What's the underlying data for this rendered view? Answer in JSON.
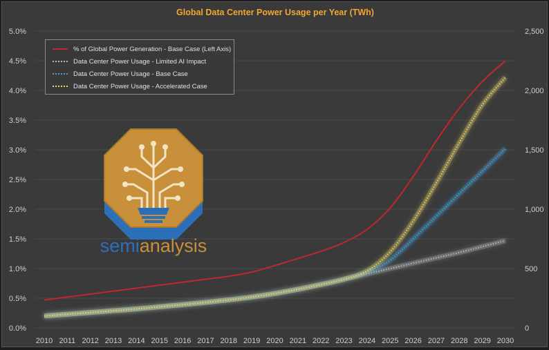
{
  "chart_data": {
    "type": "line",
    "title": "Global Data Center Power Usage per Year (TWh)",
    "x": [
      "2010",
      "2011",
      "2012",
      "2013",
      "2014",
      "2015",
      "2016",
      "2017",
      "2018",
      "2019",
      "2020",
      "2021",
      "2022",
      "2023",
      "2024",
      "2025",
      "2026",
      "2027",
      "2028",
      "2029",
      "2030"
    ],
    "left_axis": {
      "ticks": [
        "0.0%",
        "0.5%",
        "1.0%",
        "1.5%",
        "2.0%",
        "2.5%",
        "3.0%",
        "3.5%",
        "4.0%",
        "4.5%",
        "5.0%"
      ],
      "ylim": [
        0,
        5.0
      ]
    },
    "right_axis": {
      "ticks": [
        "0",
        "500",
        "1,000",
        "1,500",
        "2,000",
        "2,500"
      ],
      "ylim": [
        0,
        2500
      ]
    },
    "series": [
      {
        "name": "% of Global Power Generation - Base Case (Left Axis)",
        "axis": "left",
        "color": "#c0282c",
        "dashed": false,
        "values": [
          0.47,
          0.52,
          0.57,
          0.62,
          0.67,
          0.72,
          0.77,
          0.82,
          0.87,
          0.94,
          1.05,
          1.17,
          1.29,
          1.44,
          1.66,
          2.02,
          2.55,
          3.15,
          3.7,
          4.15,
          4.5
        ]
      },
      {
        "name": "Data Center Power Usage - Limited AI Impact",
        "axis": "right",
        "color": "#b8bcc0",
        "dashed": true,
        "values": [
          100,
          115,
          130,
          145,
          160,
          178,
          196,
          215,
          236,
          260,
          290,
          325,
          365,
          410,
          455,
          500,
          545,
          590,
          635,
          685,
          735
        ]
      },
      {
        "name": "Data Center Power Usage - Base Case",
        "axis": "right",
        "color": "#4a9fd8",
        "dashed": true,
        "values": [
          100,
          115,
          130,
          145,
          160,
          178,
          196,
          215,
          236,
          260,
          290,
          325,
          365,
          410,
          470,
          570,
          750,
          940,
          1130,
          1320,
          1510
        ]
      },
      {
        "name": "Data Center Power Usage - Accelerated Case",
        "axis": "right",
        "color": "#e8d86a",
        "dashed": true,
        "values": [
          100,
          115,
          130,
          145,
          160,
          178,
          196,
          215,
          236,
          260,
          290,
          325,
          365,
          410,
          480,
          640,
          900,
          1220,
          1560,
          1880,
          2110
        ]
      }
    ],
    "grid": true,
    "legend_position": "top-left"
  },
  "logo": {
    "text": "semianalysis",
    "colors": {
      "gold": "#c8903a",
      "blue": "#2a6fb8",
      "text_blue": "#2d6fba"
    }
  },
  "colors": {
    "background": "#3a3a3a",
    "title": "#f0a830",
    "axis_text": "#cfcfcf",
    "grid": "#4a4a4a"
  }
}
